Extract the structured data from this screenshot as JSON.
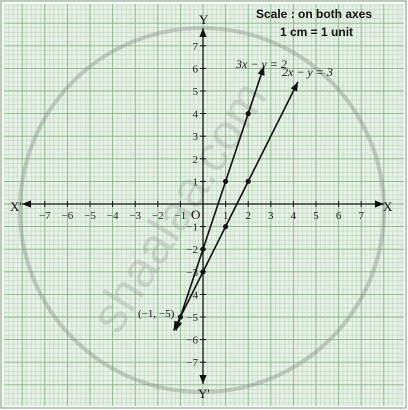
{
  "chart_data": {
    "type": "line",
    "title": "",
    "scale_note": {
      "line1": "Scale : on both axes",
      "line2": "1 cm = 1 unit"
    },
    "axes": {
      "x_positive_label": "X",
      "x_negative_label": "X'",
      "y_positive_label": "Y",
      "y_negative_label": "Y'",
      "origin_label": "O",
      "xlim": [
        -8,
        9
      ],
      "ylim": [
        -8,
        8
      ],
      "x_ticks": [
        -7,
        -6,
        -5,
        -4,
        -3,
        -2,
        -1,
        1,
        2,
        3,
        4,
        5,
        6,
        7
      ],
      "y_ticks": [
        -7,
        -6,
        -5,
        -4,
        -3,
        -2,
        -1,
        1,
        2,
        3,
        4,
        5,
        6,
        7
      ],
      "grid": "graph paper"
    },
    "series": [
      {
        "name": "3x − y = 2",
        "color": "#111111",
        "points": [
          [
            0,
            -2
          ],
          [
            1,
            1
          ],
          [
            2,
            4
          ]
        ],
        "extends_from": [
          -1.2,
          -5.6
        ],
        "extends_to": [
          2.7,
          6.1
        ]
      },
      {
        "name": "2x − y = 3",
        "color": "#111111",
        "points": [
          [
            0,
            -3
          ],
          [
            1,
            -1
          ],
          [
            2,
            1
          ]
        ],
        "extends_from": [
          -1.3,
          -5.6
        ],
        "extends_to": [
          4.2,
          5.4
        ]
      }
    ],
    "annotations": [
      {
        "text": "(−1, −5)",
        "x": -1,
        "y": -5
      }
    ]
  },
  "watermark": "shaalaa.com",
  "colors": {
    "paper": "#e7f1e7",
    "grid_minor": "#b5d4b5",
    "grid_major": "#86b586",
    "axis": "#111111"
  }
}
